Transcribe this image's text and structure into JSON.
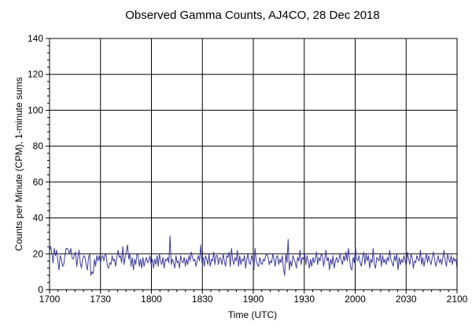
{
  "chart_data": {
    "type": "line",
    "title": "Observed Gamma Counts, AJ4CO, 28 Dec 2018",
    "xlabel": "Time (UTC)",
    "ylabel": "Counts per Minute (CPM), 1-minute sums",
    "x_tick_labels": [
      "1700",
      "1730",
      "1800",
      "1830",
      "1900",
      "1930",
      "2000",
      "2030",
      "2100"
    ],
    "y_tick_labels": [
      "0",
      "20",
      "40",
      "60",
      "80",
      "100",
      "120",
      "140"
    ],
    "x_tick_values": [
      0,
      30,
      60,
      90,
      120,
      150,
      180,
      210,
      240
    ],
    "y_tick_values": [
      0,
      20,
      40,
      60,
      80,
      100,
      120,
      140
    ],
    "xlim": [
      0,
      240
    ],
    "ylim": [
      0,
      140
    ],
    "grid": true,
    "line_color": "#3a3a9c",
    "series": [
      {
        "values": [
          22,
          24,
          20,
          15,
          23,
          19,
          22,
          16,
          11,
          19,
          17,
          13,
          14,
          19,
          23,
          23,
          22,
          20,
          23,
          18,
          17,
          19,
          21,
          13,
          18,
          22,
          15,
          12,
          17,
          19,
          18,
          14,
          11,
          18,
          20,
          8,
          10,
          9,
          17,
          13,
          19,
          16,
          19,
          15,
          18,
          19,
          16,
          20,
          19,
          13,
          12,
          15,
          14,
          19,
          16,
          17,
          13,
          18,
          22,
          18,
          19,
          15,
          24,
          14,
          18,
          21,
          25,
          17,
          20,
          13,
          18,
          11,
          17,
          14,
          20,
          19,
          13,
          17,
          12,
          18,
          13,
          16,
          18,
          15,
          16,
          19,
          14,
          17,
          12,
          17,
          14,
          19,
          13,
          20,
          16,
          14,
          18,
          12,
          17,
          16,
          18,
          15,
          30,
          14,
          17,
          15,
          12,
          19,
          15,
          16,
          12,
          19,
          16,
          15,
          18,
          13,
          17,
          14,
          19,
          16,
          21,
          18,
          16,
          17,
          13,
          16,
          19,
          16,
          25,
          15,
          18,
          13,
          19,
          17,
          14,
          20,
          13,
          17,
          16,
          21,
          14,
          19,
          19,
          14,
          18,
          17,
          14,
          20,
          16,
          13,
          19,
          18,
          21,
          13,
          23,
          17,
          14,
          18,
          16,
          22,
          13,
          19,
          14,
          17,
          16,
          19,
          12,
          17,
          20,
          15,
          14,
          19,
          17,
          11,
          23,
          16,
          14,
          13,
          18,
          15,
          14,
          17,
          16,
          19,
          20,
          18,
          14,
          16,
          15,
          20,
          17,
          13,
          18,
          19,
          14,
          17,
          15,
          19,
          12,
          8,
          20,
          15,
          28,
          11,
          16,
          13,
          19,
          17,
          15,
          12,
          18,
          16,
          22,
          14,
          18,
          17,
          20,
          14,
          19,
          16,
          12,
          17,
          13,
          18,
          15,
          17,
          21,
          14,
          18,
          16,
          20,
          19,
          13,
          17,
          22,
          16,
          18,
          11,
          17,
          14,
          19,
          12,
          16,
          18,
          15,
          17,
          20,
          16,
          14,
          19,
          16,
          21,
          16,
          23,
          17,
          12,
          11,
          18,
          15,
          24,
          17,
          16,
          19,
          15,
          13,
          18,
          21,
          14,
          20,
          16,
          19,
          12,
          17,
          15,
          23,
          14,
          12,
          18,
          17,
          16,
          20,
          13,
          19,
          15,
          17,
          14,
          18,
          16,
          22,
          17,
          15,
          13,
          19,
          16,
          20,
          11,
          18,
          14,
          17,
          15,
          19,
          16,
          13,
          21,
          17,
          14,
          20,
          18,
          12,
          16,
          15,
          19,
          17,
          16,
          22,
          14,
          18,
          13,
          17,
          20,
          15,
          19,
          16,
          14,
          18,
          21,
          17,
          13,
          16,
          19,
          15,
          17,
          14,
          18,
          22,
          16,
          13,
          20,
          17,
          15,
          19,
          14,
          18,
          16,
          17,
          12
        ]
      }
    ]
  }
}
